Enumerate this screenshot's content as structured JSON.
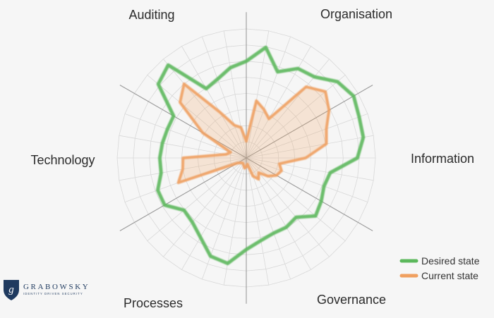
{
  "chart_data": {
    "type": "radar",
    "sections": [
      "Organisation",
      "Information",
      "Governance",
      "Processes",
      "Technology",
      "Auditing"
    ],
    "max": 10,
    "spoke_count": 36,
    "ring_count": 8,
    "grid": true,
    "legend_position": "bottom-right",
    "series": [
      {
        "name": "Desired state",
        "color": "#5cb85c",
        "values": [
          7.5,
          8.7,
          7.1,
          8.0,
          8.2,
          9.2,
          9.6,
          9.3,
          9.2,
          8.6,
          6.6,
          6.4,
          6.7,
          7.0,
          6.0,
          6.2,
          6.2,
          6.5,
          7.1,
          8.3,
          8.1,
          7.1,
          6.5,
          6.3,
          7.3,
          7.3,
          6.7,
          6.7,
          6.6,
          6.5,
          6.5,
          8.9,
          9.4,
          6.2,
          6.5,
          7.1
        ]
      },
      {
        "name": "Current state",
        "color": "#f0a060",
        "values": [
          1.3,
          4.5,
          4.0,
          3.5,
          7.2,
          8.0,
          7.4,
          6.6,
          6.3,
          4.6,
          2.6,
          2.9,
          2.7,
          2.2,
          1.5,
          1.9,
          1.5,
          0.5,
          0.7,
          0.8,
          0.6,
          0.5,
          0.5,
          0.6,
          0.8,
          5.6,
          5.0,
          4.9,
          1.6,
          1.3,
          3.9,
          6.7,
          7.5,
          4.1,
          2.7,
          2.4
        ]
      }
    ]
  },
  "legend": {
    "desired_label": "Desired state",
    "current_label": "Current state"
  },
  "brand": {
    "name": "GRABOWSKY",
    "tagline": "IDENTITY DRIVEN SECURITY",
    "mark": "g",
    "color": "#1f3a5f"
  },
  "colors": {
    "grid": "#d8d8d8",
    "section_axis": "#9a9a9a",
    "background": "#f6f6f6"
  }
}
